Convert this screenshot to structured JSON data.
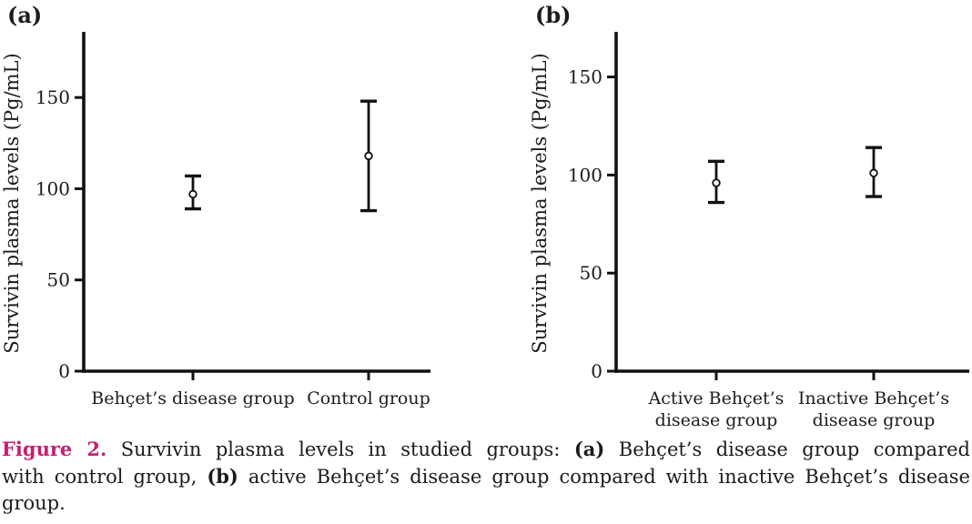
{
  "colors": {
    "line": "#111111",
    "text": "#1c1c1c",
    "marker_fill": "#ffffff",
    "figure_label": "#c81e73"
  },
  "chart_data": [
    {
      "type": "scatter",
      "panel_label": "(a)",
      "title": "",
      "xlabel": "",
      "ylabel": "Survivin plasma levels (Pg/mL)",
      "yticks": [
        0,
        50,
        100,
        150
      ],
      "ylim": [
        0,
        186
      ],
      "grid": false,
      "legend": "none",
      "marker": "open-circle-with-error-bars",
      "categories": [
        [
          "Behçet’s disease group"
        ],
        [
          "Control group"
        ]
      ],
      "points": [
        {
          "category": "Behçet’s disease group",
          "mean": 97,
          "lower": 89,
          "upper": 107
        },
        {
          "category": "Control group",
          "mean": 118,
          "lower": 88,
          "upper": 148
        }
      ]
    },
    {
      "type": "scatter",
      "panel_label": "(b)",
      "title": "",
      "xlabel": "",
      "ylabel": "Survivin plasma levels (Pg/mL)",
      "yticks": [
        0,
        50,
        100,
        150
      ],
      "ylim": [
        0,
        173
      ],
      "grid": false,
      "legend": "none",
      "marker": "open-circle-with-error-bars",
      "categories": [
        [
          "Active Behçet’s",
          "disease group"
        ],
        [
          "Inactive Behçet’s",
          "disease group"
        ]
      ],
      "points": [
        {
          "category": "Active Behçet’s disease group",
          "mean": 96,
          "lower": 86,
          "upper": 107
        },
        {
          "category": "Inactive Behçet’s disease group",
          "mean": 101,
          "lower": 89,
          "upper": 114
        }
      ]
    }
  ],
  "caption": {
    "lines": [
      [
        {
          "text": "Figure 2.",
          "style": "figlabel"
        },
        {
          "text": " Survivin plasma levels in studied groups: ",
          "style": "normal"
        },
        {
          "text": "(a)",
          "style": "bold"
        },
        {
          "text": " Behçet’s disease group compared",
          "style": "normal"
        }
      ],
      [
        {
          "text": "with control group, ",
          "style": "normal"
        },
        {
          "text": "(b)",
          "style": "bold"
        },
        {
          "text": " active Behçet’s disease group compared with inactive Behçet’s disease",
          "style": "normal"
        }
      ],
      [
        {
          "text": "group.",
          "style": "normal"
        }
      ]
    ]
  }
}
